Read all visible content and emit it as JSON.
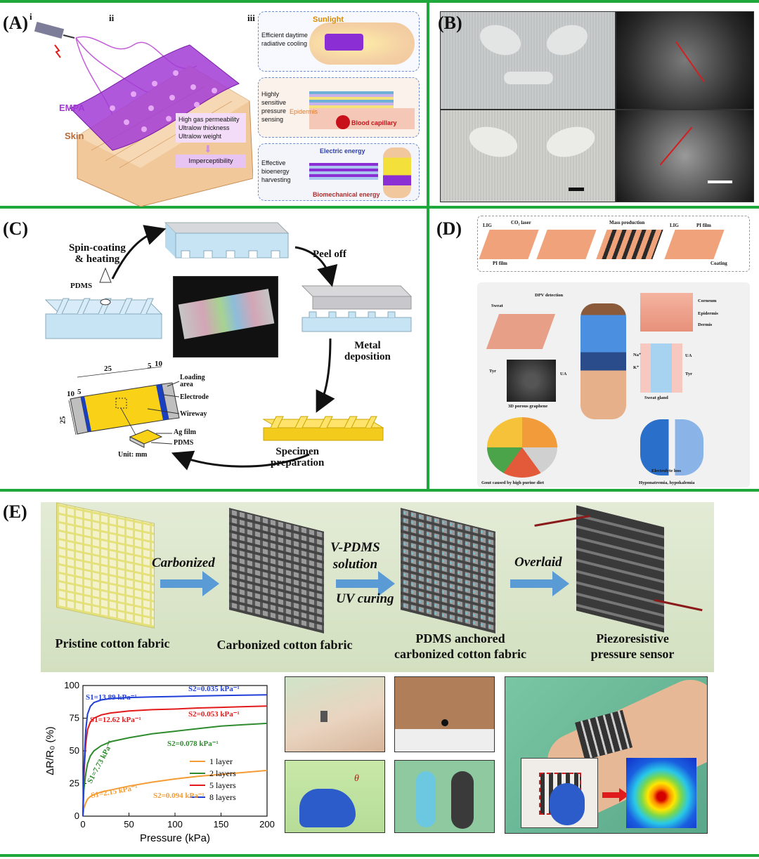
{
  "colors": {
    "divider": "#1fa83c",
    "purple": "#a23bd6",
    "e_bg": "#dfe9cf",
    "arrow_blue": "#5b9bd5"
  },
  "panelA": {
    "label": "(A)",
    "sub_i": "i",
    "sub_ii": "ii",
    "sub_iii": "iii",
    "empa": "EMPA",
    "skin": "Skin",
    "bullets": [
      "High gas permeability",
      "Ultralow thickness",
      "Ultralow weight"
    ],
    "imperceptibility": "Imperceptibility",
    "box1": {
      "title": "Efficient daytime radiative cooling",
      "tag": "Sunlight"
    },
    "box2": {
      "title": "Highly sensitive pressure sensing",
      "tag1": "Epidermis",
      "tag2": "Blood capillary"
    },
    "box3": {
      "title": "Effective bioenergy harvesting",
      "tag1": "Electric energy",
      "tag2": "Biomechanical energy"
    }
  },
  "panelB": {
    "label": "(B)"
  },
  "panelC": {
    "label": "(C)",
    "steps": {
      "spin": "Spin-coating\n& heating",
      "peel": "Peel off",
      "metal": "Metal\ndeposition",
      "specimen": "Specimen\npreparation"
    },
    "pdms_top": "PDMS",
    "legend": [
      "Loading area",
      "Electrode",
      "Wireway",
      "Ag film",
      "PDMS"
    ],
    "dims": {
      "d25": "25",
      "d5a": "5",
      "d10a": "10",
      "d10b": "10",
      "d5b": "5",
      "d25v": "25"
    },
    "unit": "Unit: mm"
  },
  "panelD": {
    "label": "(D)",
    "top": {
      "lig": "LIG",
      "co2": "CO₂ laser",
      "pi": "PI film",
      "mass": "Mass production",
      "lig2": "LIG",
      "pi2": "PI film",
      "coating": "Coating"
    },
    "labels": {
      "dpv": "DPV detection",
      "sweat": "Sweat",
      "graphene": "3D porous graphene",
      "tyr": "Tyr",
      "ua": "UA",
      "corneum": "Corneum",
      "epidermis": "Epidermis",
      "dermis": "Dermis",
      "na": "Na⁺",
      "k": "K⁺",
      "ua2": "UA",
      "tyr2": "Tyr",
      "gland": "Sweat gland",
      "gout": "Gout caused by high purine diet",
      "loss": "Electrolyte loss",
      "hypo": "Hyponatremia, hypokalemia"
    }
  },
  "panelE": {
    "label": "(E)",
    "arrows": {
      "a1": "Carbonized",
      "a2top": "V-PDMS\nsolution",
      "a2bot": "UV curing",
      "a3": "Overlaid"
    },
    "titles": [
      "Pristine cotton fabric",
      "Carbonized cotton fabric",
      "PDMS anchored\ncarbonized cotton fabric",
      "Piezoresistive\npressure sensor"
    ],
    "theta": "θ"
  },
  "chart_data": {
    "type": "line",
    "xlabel": "Pressure (kPa)",
    "ylabel": "ΔR/R₀ (%)",
    "xlim": [
      0,
      200
    ],
    "ylim": [
      0,
      100
    ],
    "xticks": [
      0,
      50,
      100,
      150,
      200
    ],
    "yticks": [
      0,
      25,
      50,
      75,
      100
    ],
    "legend_position": "bottom-right",
    "series": [
      {
        "name": "1 layer",
        "color": "#f39c34",
        "x": [
          0,
          1,
          3,
          5,
          8,
          12,
          20,
          30,
          50,
          75,
          100,
          125,
          150,
          175,
          200
        ],
        "y": [
          0,
          6,
          10,
          13,
          15,
          16.5,
          18.5,
          20,
          23,
          26,
          28.5,
          30.5,
          32,
          33.5,
          35
        ]
      },
      {
        "name": "2 layers",
        "color": "#2e8b2e",
        "x": [
          0,
          1,
          3,
          5,
          8,
          12,
          20,
          30,
          50,
          75,
          100,
          125,
          150,
          175,
          200
        ],
        "y": [
          0,
          20,
          32,
          40,
          46,
          50,
          54,
          57,
          60,
          63,
          65,
          67,
          69,
          70,
          71
        ]
      },
      {
        "name": "5 layers",
        "color": "#e31a1c",
        "x": [
          0,
          1,
          3,
          5,
          8,
          12,
          20,
          30,
          50,
          75,
          100,
          125,
          150,
          175,
          200
        ],
        "y": [
          0,
          30,
          55,
          66,
          72,
          75,
          77.5,
          79,
          80.5,
          81.5,
          82,
          82.8,
          83.3,
          83.8,
          84.3
        ]
      },
      {
        "name": "8 layers",
        "color": "#1f3fd8",
        "x": [
          0,
          1,
          3,
          5,
          8,
          12,
          20,
          30,
          50,
          75,
          100,
          125,
          150,
          175,
          200
        ],
        "y": [
          0,
          35,
          65,
          78,
          84,
          87,
          89,
          90,
          90.8,
          91.3,
          91.6,
          92,
          92.3,
          92.6,
          92.9
        ]
      }
    ],
    "annotations": [
      {
        "text": "S1=13.89 kPa⁻¹",
        "color": "#1f3fd8"
      },
      {
        "text": "S2=0.035 kPa⁻¹",
        "color": "#1f3fd8"
      },
      {
        "text": "S1=12.62 kPa⁻¹",
        "color": "#e31a1c"
      },
      {
        "text": "S2=0.053 kPa⁻¹",
        "color": "#e31a1c"
      },
      {
        "text": "S1=7.73 kPa⁻¹",
        "color": "#2e8b2e"
      },
      {
        "text": "S2=0.078 kPa⁻¹",
        "color": "#2e8b2e"
      },
      {
        "text": "S1=2.15 kPa⁻¹",
        "color": "#f39c34"
      },
      {
        "text": "S2=0.094 kPa⁻¹",
        "color": "#f39c34"
      }
    ]
  }
}
